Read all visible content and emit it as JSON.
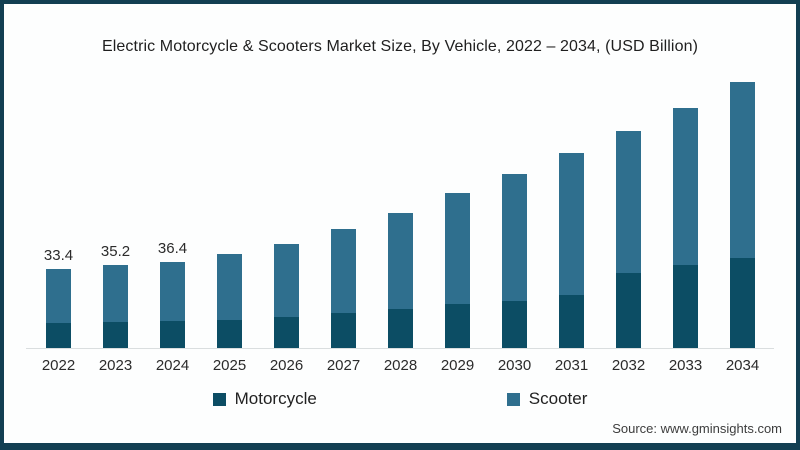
{
  "page": {
    "background_color": "#fdfefe",
    "border_color": "#123f52"
  },
  "chart_data": {
    "type": "bar",
    "stacked": true,
    "title": "Electric Motorcycle & Scooters Market Size, By Vehicle, 2022 – 2034, (USD Billion)",
    "categories": [
      "2022",
      "2023",
      "2024",
      "2025",
      "2026",
      "2027",
      "2028",
      "2029",
      "2030",
      "2031",
      "2032",
      "2033",
      "2034"
    ],
    "series": [
      {
        "name": "Motorcycle",
        "color": "#0c4d64",
        "values": [
          10.6,
          11.0,
          11.3,
          12.0,
          13.0,
          14.7,
          16.3,
          18.5,
          19.9,
          22.3,
          31.7,
          35.1,
          38.0
        ]
      },
      {
        "name": "Scooter",
        "color": "#2f6f8e",
        "values": [
          22.8,
          24.2,
          25.1,
          27.8,
          30.9,
          35.6,
          40.9,
          46.9,
          53.5,
          60.0,
          60.1,
          66.3,
          74.1
        ]
      }
    ],
    "totals": [
      33.4,
      35.2,
      36.4,
      39.8,
      43.9,
      50.3,
      57.2,
      65.4,
      73.4,
      82.3,
      91.8,
      101.4,
      112.1
    ],
    "bar_labels": [
      "33.4",
      "35.2",
      "36.4",
      "",
      "",
      "",
      "",
      "",
      "",
      "",
      "",
      "",
      ""
    ],
    "legend_position": "bottom",
    "gridlines": false,
    "y_axis_visible": false,
    "ylim": [
      0,
      120
    ]
  },
  "source": {
    "label": "Source: www.gminsights.com"
  }
}
